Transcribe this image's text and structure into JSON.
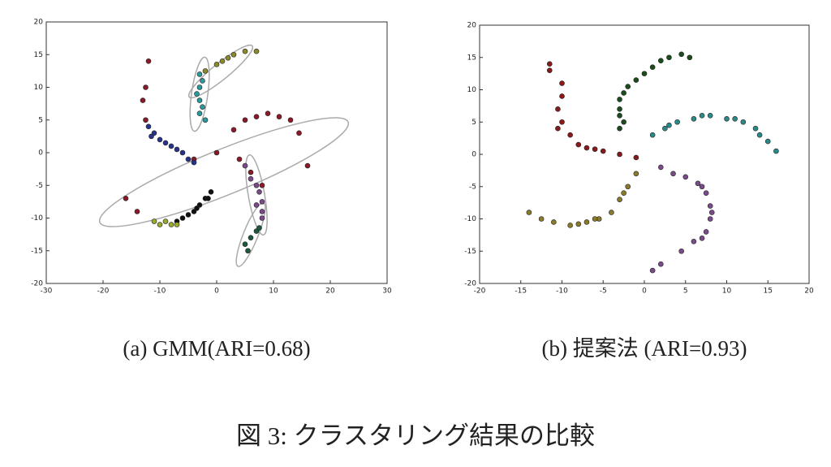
{
  "figure_caption": "図 3: クラスタリング結果の比較",
  "chart_data": [
    {
      "type": "scatter",
      "caption": "(a) GMM(ARI=0.68)",
      "xlim": [
        -30,
        30
      ],
      "ylim": [
        -20,
        20
      ],
      "xticks": [
        -30,
        -20,
        -10,
        0,
        10,
        20,
        30
      ],
      "yticks": [
        -20,
        -15,
        -10,
        -5,
        0,
        5,
        10,
        15,
        20
      ],
      "series": [
        {
          "color": "#2a9a9a",
          "x": [
            -3,
            -3,
            -3,
            -2.5,
            -3.5,
            -2.5,
            -3,
            -2
          ],
          "y": [
            12,
            10,
            8,
            7,
            9,
            11,
            6,
            5
          ]
        },
        {
          "color": "#8a8a2a",
          "x": [
            -2,
            0,
            1,
            2,
            3,
            5,
            7
          ],
          "y": [
            12.5,
            13.5,
            14,
            14.5,
            15,
            15.5,
            15.5
          ]
        },
        {
          "color": "#8a1a2a",
          "x": [
            -12,
            -12.5,
            -13,
            -12.5,
            3,
            5,
            7,
            9,
            11,
            13,
            14.5,
            16,
            -16,
            -14,
            -4,
            0,
            4,
            6,
            8
          ],
          "y": [
            14,
            10,
            8,
            5,
            3.5,
            5,
            5.5,
            6,
            5.5,
            5,
            3,
            -2,
            -7,
            -9,
            -1,
            0,
            -1,
            -3,
            -5
          ]
        },
        {
          "color": "#26348a",
          "x": [
            -12,
            -11,
            -10,
            -9,
            -8,
            -7,
            -6,
            -5,
            -4,
            -11.5
          ],
          "y": [
            4,
            3,
            2,
            1.5,
            1,
            0.5,
            0,
            -1,
            -1.5,
            2.5
          ]
        },
        {
          "color": "#7a4a8a",
          "x": [
            5,
            6,
            7,
            7.5,
            8,
            8,
            8,
            7
          ],
          "y": [
            -2,
            -4,
            -5,
            -6,
            -7.5,
            -9,
            -10,
            -8
          ]
        },
        {
          "color": "#1a5a3a",
          "x": [
            5,
            6,
            7,
            7.5,
            5.5
          ],
          "y": [
            -14,
            -13,
            -12,
            -11.5,
            -15
          ]
        },
        {
          "color": "#111111",
          "x": [
            -1,
            -2,
            -3,
            -4,
            -5,
            -6,
            -7,
            -3.5,
            -1.5
          ],
          "y": [
            -6,
            -7,
            -8,
            -9,
            -9.5,
            -10,
            -10.5,
            -8.5,
            -7
          ]
        },
        {
          "color": "#9aaa2a",
          "x": [
            -8,
            -9,
            -10,
            -11,
            -7
          ],
          "y": [
            -11,
            -10.5,
            -11,
            -10.5,
            -11
          ]
        }
      ]
    },
    {
      "type": "scatter",
      "caption": "(b) 提案法 (ARI=0.93)",
      "xlim": [
        -20,
        20
      ],
      "ylim": [
        -20,
        20
      ],
      "xticks": [
        -20,
        -15,
        -10,
        -5,
        0,
        5,
        10,
        15,
        20
      ],
      "yticks": [
        -20,
        -15,
        -10,
        -5,
        0,
        5,
        10,
        15,
        20
      ],
      "series": [
        {
          "color": "#1a4d1a",
          "x": [
            -3,
            -3,
            -2.5,
            -2,
            -1,
            0,
            1,
            2,
            3,
            4.5,
            5.5,
            -3,
            -2.5,
            -3
          ],
          "y": [
            7,
            8.5,
            9.5,
            10.5,
            11.5,
            12.5,
            13.5,
            14.5,
            15,
            15.5,
            15,
            6,
            5,
            4
          ]
        },
        {
          "color": "#2a8a8a",
          "x": [
            1,
            2.5,
            4,
            6,
            8,
            10,
            12,
            13.5,
            15,
            16,
            3,
            7,
            11,
            14
          ],
          "y": [
            3,
            4,
            5,
            5.5,
            6,
            5.5,
            5,
            4,
            2,
            0.5,
            4.5,
            6,
            5.5,
            3
          ]
        },
        {
          "color": "#7a4a8a",
          "x": [
            2,
            3.5,
            5,
            6.5,
            7.5,
            8,
            8,
            7.5,
            7,
            6,
            4.5,
            2,
            1,
            7,
            8.2
          ],
          "y": [
            -2,
            -3,
            -3.5,
            -4.5,
            -6,
            -8,
            -10,
            -12,
            -13,
            -13.5,
            -15,
            -17,
            -18,
            -5,
            -9
          ]
        },
        {
          "color": "#8a7a2a",
          "x": [
            -1,
            -2,
            -3,
            -4,
            -5.5,
            -7,
            -9,
            -11,
            -12.5,
            -14,
            -2.5,
            -6,
            -8
          ],
          "y": [
            -3,
            -5,
            -7,
            -9,
            -10,
            -10.5,
            -11,
            -10.5,
            -10,
            -9,
            -6,
            -10,
            -10.8
          ]
        },
        {
          "color": "#8a1a1a",
          "x": [
            -11.5,
            -11.5,
            -10,
            -10,
            -10.5,
            -10,
            -9,
            -8,
            -7,
            -5,
            -3,
            -1,
            -10.5,
            -6
          ],
          "y": [
            14,
            13,
            11,
            9,
            7,
            5,
            3,
            1.5,
            1,
            0.5,
            0,
            -0.5,
            4,
            0.8
          ]
        }
      ]
    }
  ]
}
